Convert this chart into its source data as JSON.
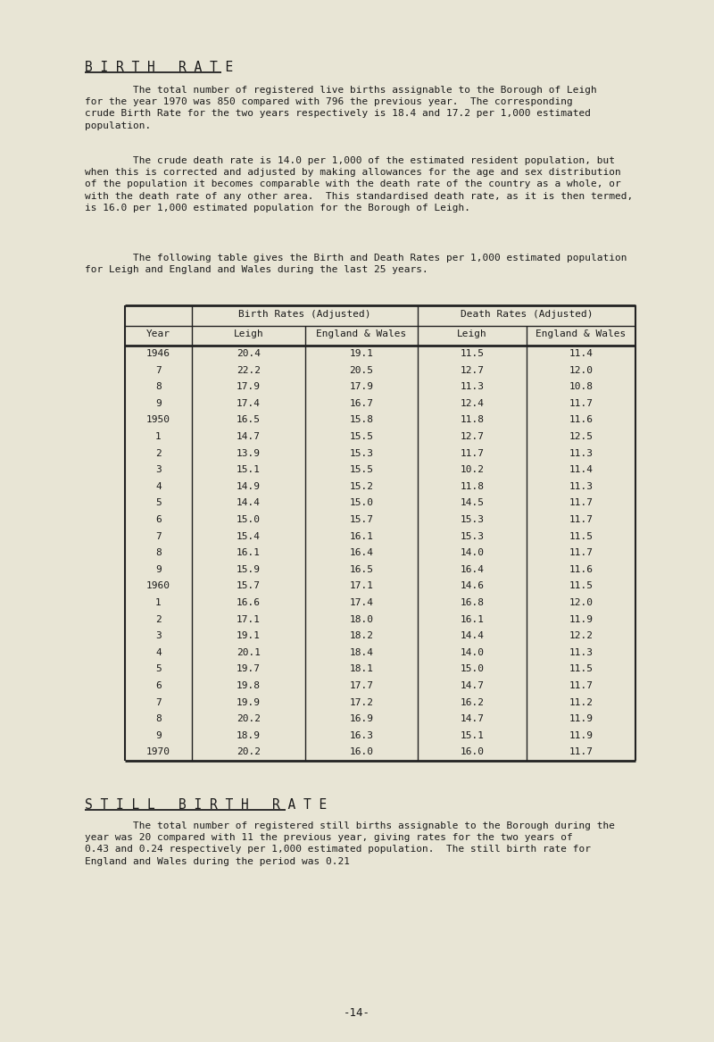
{
  "bg_color": "#e8e5d5",
  "title_birth": "B I R T H   R A T E",
  "para1_indent": "        The total number of registered live births assignable to the Borough of Leigh\nfor the year 1970 was 850 compared with 796 the previous year.  The corresponding\ncrude Birth Rate for the two years respectively is 18.4 and 17.2 per 1,000 estimated\npopulation.",
  "para2_indent": "        The crude death rate is 14.0 per 1,000 of the estimated resident population, but\nwhen this is corrected and adjusted by making allowances for the age and sex distribution\nof the population it becomes comparable with the death rate of the country as a whole, or\nwith the death rate of any other area.  This standardised death rate, as it is then termed,\nis 16.0 per 1,000 estimated population for the Borough of Leigh.",
  "para3_indent": "        The following table gives the Birth and Death Rates per 1,000 estimated population\nfor Leigh and England and Wales during the last 25 years.",
  "table_data": [
    [
      "1946",
      "20.4",
      "19.1",
      "11.5",
      "11.4"
    ],
    [
      "7",
      "22.2",
      "20.5",
      "12.7",
      "12.0"
    ],
    [
      "8",
      "17.9",
      "17.9",
      "11.3",
      "10.8"
    ],
    [
      "9",
      "17.4",
      "16.7",
      "12.4",
      "11.7"
    ],
    [
      "1950",
      "16.5",
      "15.8",
      "11.8",
      "11.6"
    ],
    [
      "1",
      "14.7",
      "15.5",
      "12.7",
      "12.5"
    ],
    [
      "2",
      "13.9",
      "15.3",
      "11.7",
      "11.3"
    ],
    [
      "3",
      "15.1",
      "15.5",
      "10.2",
      "11.4"
    ],
    [
      "4",
      "14.9",
      "15.2",
      "11.8",
      "11.3"
    ],
    [
      "5",
      "14.4",
      "15.0",
      "14.5",
      "11.7"
    ],
    [
      "6",
      "15.0",
      "15.7",
      "15.3",
      "11.7"
    ],
    [
      "7",
      "15.4",
      "16.1",
      "15.3",
      "11.5"
    ],
    [
      "8",
      "16.1",
      "16.4",
      "14.0",
      "11.7"
    ],
    [
      "9",
      "15.9",
      "16.5",
      "16.4",
      "11.6"
    ],
    [
      "1960",
      "15.7",
      "17.1",
      "14.6",
      "11.5"
    ],
    [
      "1",
      "16.6",
      "17.4",
      "16.8",
      "12.0"
    ],
    [
      "2",
      "17.1",
      "18.0",
      "16.1",
      "11.9"
    ],
    [
      "3",
      "19.1",
      "18.2",
      "14.4",
      "12.2"
    ],
    [
      "4",
      "20.1",
      "18.4",
      "14.0",
      "11.3"
    ],
    [
      "5",
      "19.7",
      "18.1",
      "15.0",
      "11.5"
    ],
    [
      "6",
      "19.8",
      "17.7",
      "14.7",
      "11.7"
    ],
    [
      "7",
      "19.9",
      "17.2",
      "16.2",
      "11.2"
    ],
    [
      "8",
      "20.2",
      "16.9",
      "14.7",
      "11.9"
    ],
    [
      "9",
      "18.9",
      "16.3",
      "15.1",
      "11.9"
    ],
    [
      "1970",
      "20.2",
      "16.0",
      "16.0",
      "11.7"
    ]
  ],
  "title_still": "S T I L L   B I R T H   R A T E",
  "para_still": "        The total number of registered still births assignable to the Borough during the\nyear was 20 compared with 11 the previous year, giving rates for the two years of\n0.43 and 0.24 respectively per 1,000 estimated population.  The still birth rate for\nEngland and Wales during the period was 0.21",
  "page_num": "-14-",
  "text_color": "#1a1a1a",
  "line_color": "#222222",
  "fs_title": 10.5,
  "fs_body": 8.0,
  "fs_table": 8.0
}
